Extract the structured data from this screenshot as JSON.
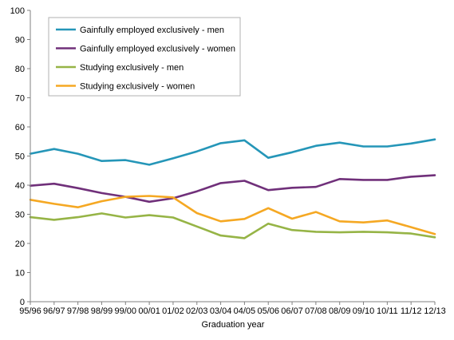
{
  "chart_data": {
    "type": "line",
    "title": "",
    "xlabel": "Graduation year",
    "ylabel": "",
    "ylim": [
      0,
      100
    ],
    "yticks": [
      0,
      10,
      20,
      30,
      40,
      50,
      60,
      70,
      80,
      90,
      100
    ],
    "grid": false,
    "legend_position": "top-left",
    "categories": [
      "95/96",
      "96/97",
      "97/98",
      "98/99",
      "99/00",
      "00/01",
      "01/02",
      "02/03",
      "03/04",
      "04/05",
      "05/06",
      "06/07",
      "07/08",
      "08/09",
      "09/10",
      "10/11",
      "11/12",
      "12/13"
    ],
    "series": [
      {
        "name": "Gainfully employed exclusively - men",
        "color": "#2596b8",
        "values": [
          50.8,
          52.4,
          50.8,
          48.3,
          48.6,
          47.0,
          49.2,
          51.6,
          54.4,
          55.4,
          49.4,
          51.3,
          53.5,
          54.6,
          53.3,
          53.3,
          54.3,
          55.7
        ]
      },
      {
        "name": "Gainfully employed exclusively - women",
        "color": "#70307a",
        "values": [
          39.8,
          40.5,
          39.0,
          37.3,
          36.0,
          34.3,
          35.5,
          37.9,
          40.7,
          41.5,
          38.3,
          39.1,
          39.4,
          42.1,
          41.8,
          41.8,
          42.9,
          43.4
        ]
      },
      {
        "name": "Studying exclusively - men",
        "color": "#96b446",
        "values": [
          29.0,
          28.1,
          29.0,
          30.3,
          28.9,
          29.7,
          28.9,
          25.8,
          22.7,
          21.8,
          26.8,
          24.6,
          24.0,
          23.8,
          24.0,
          23.8,
          23.4,
          22.1
        ]
      },
      {
        "name": "Studying exclusively - women",
        "color": "#f5a823",
        "values": [
          35.0,
          33.6,
          32.4,
          34.5,
          36.0,
          36.3,
          35.8,
          30.4,
          27.6,
          28.4,
          32.1,
          28.5,
          30.8,
          27.6,
          27.2,
          27.9,
          25.6,
          23.2
        ]
      }
    ]
  }
}
